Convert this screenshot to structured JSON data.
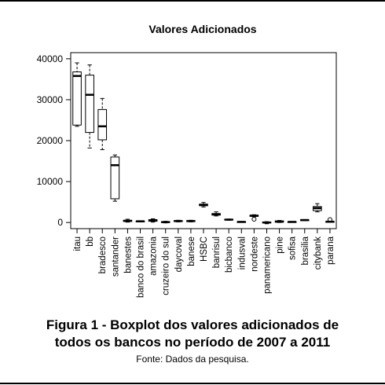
{
  "chart_data": {
    "type": "boxplot",
    "title": "Valores Adicionados",
    "xlabel": "",
    "ylabel": "",
    "ylim": [
      -1500,
      41500
    ],
    "y_ticks": [
      0,
      10000,
      20000,
      30000,
      40000
    ],
    "grid": false,
    "legend": "none",
    "categories": [
      "itau",
      "bb",
      "bradesco",
      "santander",
      "banestes",
      "banco do brasil",
      "amazonia",
      "cruzeiro do sul",
      "daycoval",
      "banese",
      "HSBC",
      "banrisul",
      "bicbanco",
      "indusval",
      "nordeste",
      "panamericano",
      "pine",
      "sofisa",
      "brasilia",
      "citybank",
      "parana"
    ],
    "boxes": [
      {
        "min": 23500,
        "q1": 23800,
        "median": 35800,
        "q3": 36800,
        "max": 39000
      },
      {
        "min": 18200,
        "q1": 22000,
        "median": 31200,
        "q3": 36000,
        "max": 38500
      },
      {
        "min": 17800,
        "q1": 20200,
        "median": 23500,
        "q3": 27600,
        "max": 30300
      },
      {
        "min": 5200,
        "q1": 5800,
        "median": 14000,
        "q3": 16000,
        "max": 16500
      },
      {
        "min": 100,
        "q1": 250,
        "median": 400,
        "q3": 550,
        "max": 800
      },
      {
        "min": 150,
        "q1": 200,
        "median": 300,
        "q3": 350,
        "max": 400
      },
      {
        "min": 100,
        "q1": 300,
        "median": 500,
        "q3": 700,
        "max": 900
      },
      {
        "min": -100,
        "q1": 0,
        "median": 100,
        "q3": 200,
        "max": 300
      },
      {
        "min": 150,
        "q1": 250,
        "median": 350,
        "q3": 450,
        "max": 550
      },
      {
        "min": 150,
        "q1": 250,
        "median": 350,
        "q3": 450,
        "max": 550
      },
      {
        "min": 3800,
        "q1": 4100,
        "median": 4300,
        "q3": 4500,
        "max": 4900
      },
      {
        "min": 1600,
        "q1": 1800,
        "median": 2000,
        "q3": 2200,
        "max": 2600
      },
      {
        "min": 550,
        "q1": 650,
        "median": 700,
        "q3": 800,
        "max": 850
      },
      {
        "min": 50,
        "q1": 100,
        "median": 150,
        "q3": 200,
        "max": 250
      },
      {
        "min": 1400,
        "q1": 1500,
        "median": 1650,
        "q3": 1800,
        "max": 1900,
        "outliers": [
          800
        ]
      },
      {
        "min": -300,
        "q1": -100,
        "median": 0,
        "q3": 100,
        "max": 200
      },
      {
        "min": 0,
        "q1": 100,
        "median": 200,
        "q3": 400,
        "max": 500
      },
      {
        "min": 50,
        "q1": 100,
        "median": 150,
        "q3": 200,
        "max": 250
      },
      {
        "min": 500,
        "q1": 550,
        "median": 600,
        "q3": 650,
        "max": 700
      },
      {
        "min": 2600,
        "q1": 2900,
        "median": 3500,
        "q3": 3900,
        "max": 4600
      },
      {
        "min": 100,
        "q1": 150,
        "median": 200,
        "q3": 250,
        "max": 300,
        "outliers": [
          700
        ]
      }
    ]
  },
  "caption": {
    "line1": "Figura 1 - Boxplot dos valores adicionados de",
    "line2": "todos os bancos no período de 2007 a 2011",
    "source": "Fonte: Dados da pesquisa."
  }
}
